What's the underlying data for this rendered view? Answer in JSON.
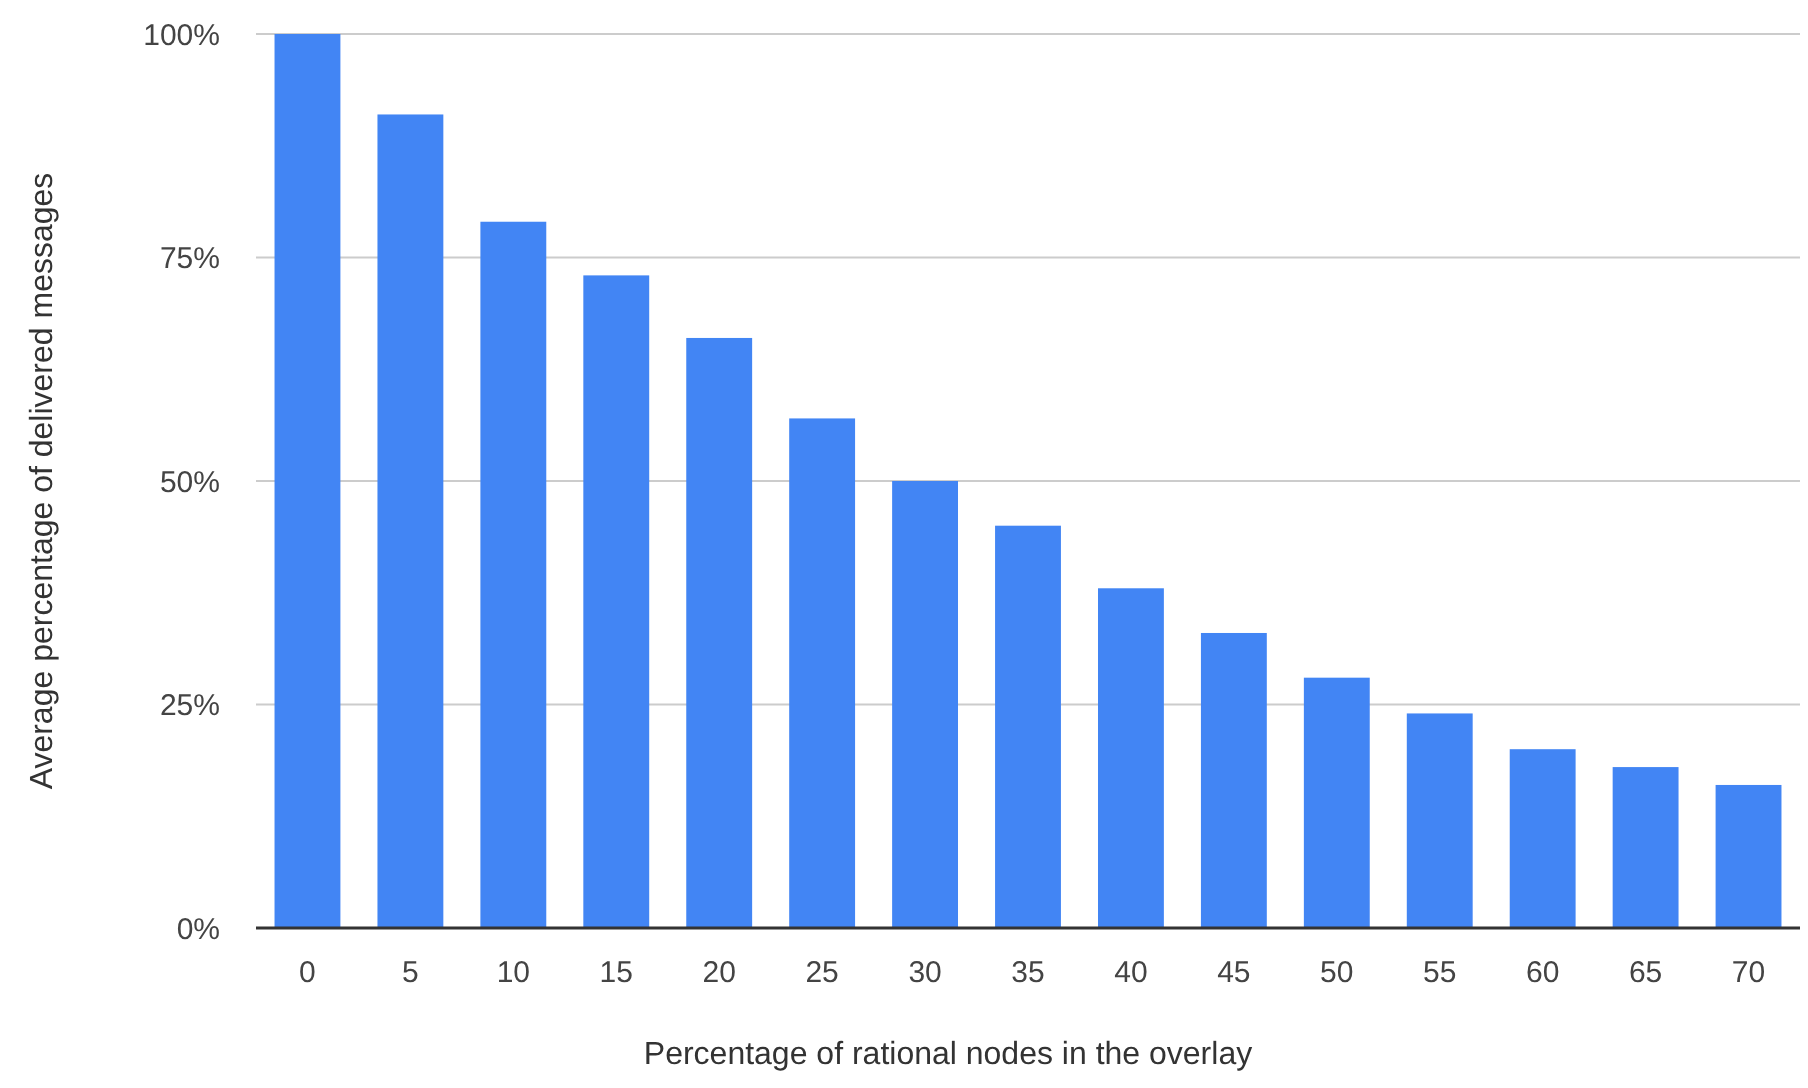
{
  "chart_data": {
    "type": "bar",
    "xlabel": "Percentage of rational nodes in the overlay",
    "ylabel": "Average percentage of delivered messages",
    "categories": [
      "0",
      "5",
      "10",
      "15",
      "20",
      "25",
      "30",
      "35",
      "40",
      "45",
      "50",
      "55",
      "60",
      "65",
      "70"
    ],
    "values": [
      100,
      91,
      79,
      73,
      66,
      57,
      50,
      45,
      38,
      33,
      28,
      24,
      20,
      18,
      16
    ],
    "color": "#4285f4",
    "ylim": [
      0,
      100
    ],
    "yticks": [
      {
        "value": 0,
        "label": "0%"
      },
      {
        "value": 25,
        "label": "25%"
      },
      {
        "value": 50,
        "label": "50%"
      },
      {
        "value": 75,
        "label": "75%"
      },
      {
        "value": 100,
        "label": "100%"
      }
    ],
    "grid": true
  }
}
